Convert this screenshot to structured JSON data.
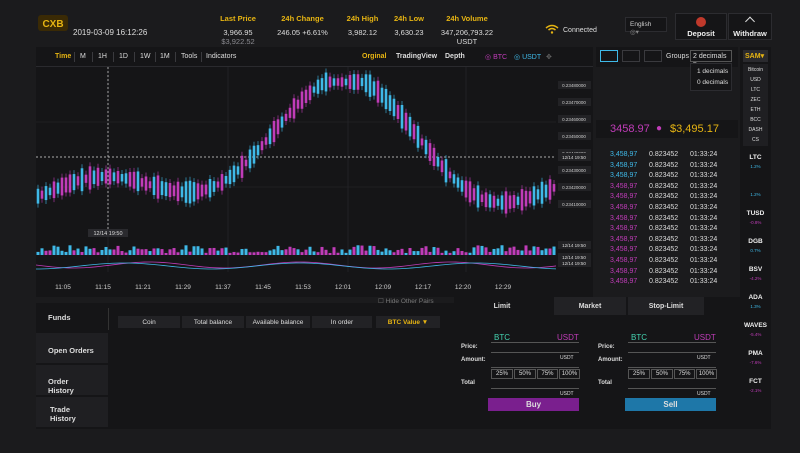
{
  "header": {
    "datetime": "2019-03-09 16:12:26",
    "last_price": {
      "label": "Last Price",
      "value1": "3,966.95",
      "value2": "$3,922.52"
    },
    "change_24h": {
      "label": "24h Change",
      "value1": "246.05",
      "value2": "+6.61%"
    },
    "high_24h": {
      "label": "24h High",
      "value": "3,982.12"
    },
    "low_24h": {
      "label": "24h Low",
      "value": "3,630.23"
    },
    "volume_24h": {
      "label": "24h Volume",
      "value": "347,206,793.22",
      "unit": "USDT"
    },
    "connection": "Connected",
    "language": "English",
    "deposit": "Deposit",
    "withdraw": "Withdraw"
  },
  "chart_toolbar": {
    "intervals": [
      "Time",
      "M",
      "1H",
      "1D",
      "1W",
      "1M"
    ],
    "tools": "Tools",
    "indicators": "Indicators",
    "views": [
      "Orginal",
      "TradingView",
      "Depth"
    ],
    "legend": [
      "BTC",
      "USDT"
    ]
  },
  "chart_axis": {
    "time_ticks": [
      "11:05",
      "11:15",
      "11:21",
      "11:29",
      "11:37",
      "11:45",
      "11:53",
      "12:01",
      "12:09",
      "12:17",
      "12:20",
      "12:29"
    ],
    "price_ticks": [
      "0.23480000",
      "0.23470000",
      "0.23460000",
      "0.23450000",
      "0.23440000",
      "0.23430000",
      "0.23420000",
      "0.23410000"
    ],
    "cursor_label": "12/14 19:50",
    "crosshair_time": "12/14 19:50"
  },
  "hide_other_pairs": "Hide Other Pairs",
  "groups": {
    "label": "Groups",
    "selected": "2 decimals",
    "options": [
      "1 decimals",
      "0 decimals"
    ]
  },
  "orderbook": {
    "big_price_btc": "3458.97",
    "big_price_usd": "$3,495.17",
    "rows_top": [
      {
        "price": "3,458,97",
        "amount": "0.823452",
        "time": "01:33:24"
      },
      {
        "price": "3,458,97",
        "amount": "0.823452",
        "time": "01:33:24"
      },
      {
        "price": "3,458,97",
        "amount": "0.823452",
        "time": "01:33:24"
      },
      {
        "price": "3,458,97",
        "amount": "0.823452",
        "time": "01:33:24"
      },
      {
        "price": "3,458,97",
        "amount": "0.823452",
        "time": "01:33:24"
      },
      {
        "price": "3,458,97",
        "amount": "0.823452",
        "time": "01:33:24"
      },
      {
        "price": "3,458,97",
        "amount": "0.823452",
        "time": "01:33:24"
      },
      {
        "price": "3,458,97",
        "amount": "0.823452",
        "time": "01:33:24"
      },
      {
        "price": "3,458,97",
        "amount": "0.823452",
        "time": "01:33:24"
      },
      {
        "price": "3,458,97",
        "amount": "0.823452",
        "time": "01:33:24"
      },
      {
        "price": "3,458,97",
        "amount": "0.823452",
        "time": "01:33:24"
      },
      {
        "price": "3,458,97",
        "amount": "0.823452",
        "time": "01:33:24"
      },
      {
        "price": "3,458,97",
        "amount": "0.823452",
        "time": "01:33:24"
      }
    ]
  },
  "sidebar": {
    "selected": "SAM",
    "dropdown": [
      "Bitcoin",
      "USD",
      "LTC",
      "ZEC",
      "ETH",
      "BCC",
      "DASH",
      "CS"
    ],
    "coins": [
      {
        "name": "LTC",
        "change": "1.2%",
        "up": true
      },
      {
        "name": "",
        "change": "1.2%",
        "up": true
      },
      {
        "name": "TUSD",
        "change": "-0.8%",
        "up": false
      },
      {
        "name": "DGB",
        "change": "0.7%",
        "up": true
      },
      {
        "name": "BSV",
        "change": "-4.2%",
        "up": false
      },
      {
        "name": "ADA",
        "change": "1.3%",
        "up": true
      },
      {
        "name": "WAVES",
        "change": "-5.4%",
        "up": false
      },
      {
        "name": "PMA",
        "change": "-7.6%",
        "up": false
      },
      {
        "name": "FCT",
        "change": "-2.1%",
        "up": false
      }
    ]
  },
  "funds": {
    "tabs": [
      "Funds",
      "Open Orders",
      "Order History",
      "Trade History"
    ],
    "columns": [
      "Coin",
      "Total balance",
      "Available balance",
      "In order"
    ],
    "btc_value": "BTC Value"
  },
  "trade": {
    "tabs": [
      "Limit",
      "Market",
      "Stop-Limit"
    ],
    "buy": {
      "base": "BTC",
      "quote": "USDT",
      "price_label": "Price:",
      "amount_label": "Amount:",
      "total_label": "Total",
      "unit": "USDT",
      "pcts": [
        "25%",
        "50%",
        "75%",
        "100%"
      ],
      "button": "Buy"
    },
    "sell": {
      "base": "BTC",
      "quote": "USDT",
      "price_label": "Price:",
      "amount_label": "Amount:",
      "total_label": "Total",
      "unit": "USDT",
      "pcts": [
        "25%",
        "50%",
        "75%",
        "100%"
      ],
      "button": "Sell"
    }
  },
  "colors": {
    "gold": "#e6b412",
    "blue": "#3fb9e8",
    "magenta": "#c03cb8",
    "buy": "#7a1f8e",
    "sell": "#1e77a8"
  }
}
